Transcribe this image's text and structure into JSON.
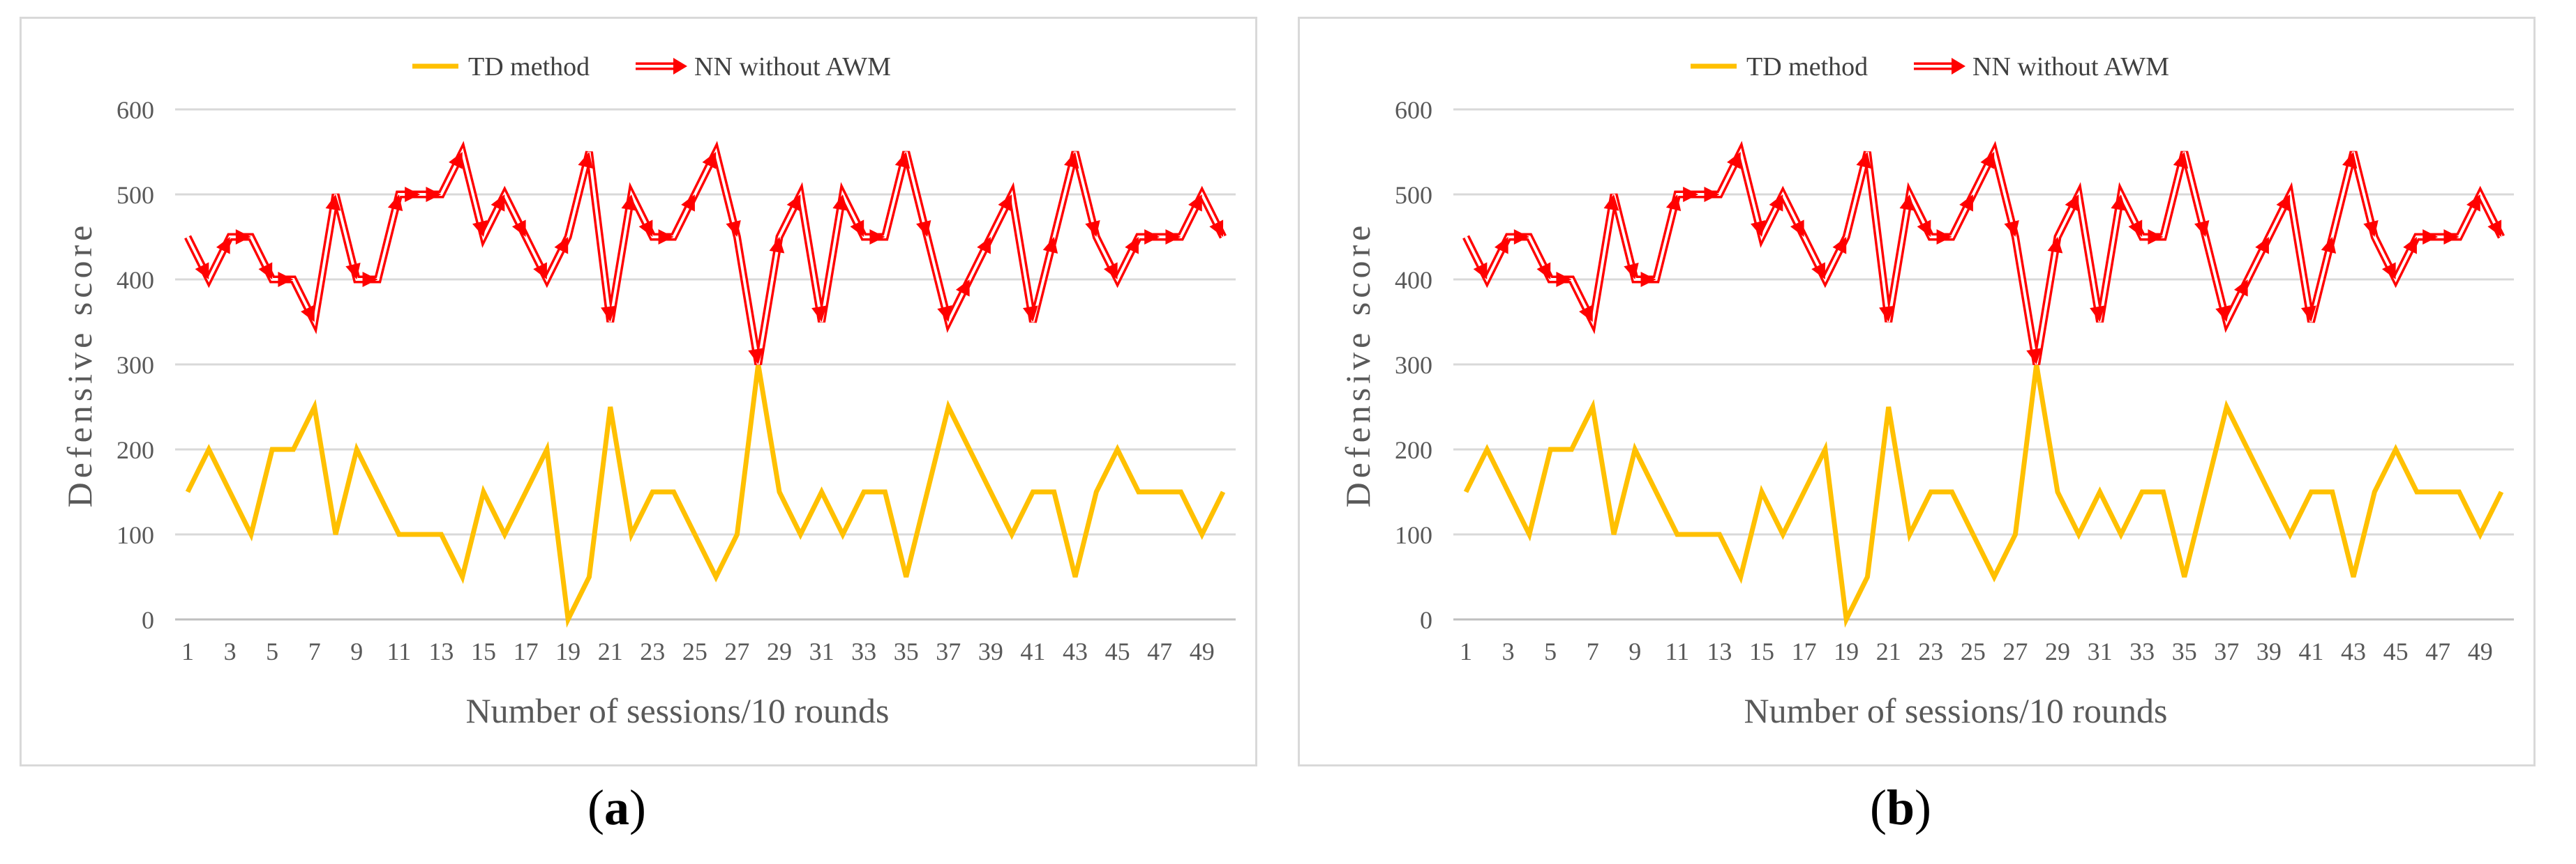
{
  "chart_data": [
    {
      "type": "line",
      "panel_label": "a",
      "title": "",
      "xlabel": "Number of sessions/10 rounds",
      "ylabel": "Defensive score",
      "ylim": [
        0,
        600
      ],
      "yticks": [
        0,
        100,
        200,
        300,
        400,
        500,
        600
      ],
      "grid": true,
      "legend_position": "top-center",
      "x": [
        1,
        2,
        3,
        4,
        5,
        6,
        7,
        8,
        9,
        10,
        11,
        12,
        13,
        14,
        15,
        16,
        17,
        18,
        19,
        20,
        21,
        22,
        23,
        24,
        25,
        26,
        27,
        28,
        29,
        30,
        31,
        32,
        33,
        34,
        35,
        36,
        37,
        38,
        39,
        40,
        41,
        42,
        43,
        44,
        45,
        46,
        47,
        48,
        49,
        50
      ],
      "xtick_labels": [
        "1",
        "3",
        "5",
        "7",
        "9",
        "11",
        "13",
        "15",
        "17",
        "19",
        "21",
        "23",
        "25",
        "27",
        "29",
        "31",
        "33",
        "35",
        "37",
        "39",
        "41",
        "43",
        "45",
        "47",
        "49"
      ],
      "series": [
        {
          "name": "TD method",
          "color": "#ffc000",
          "values": [
            150,
            200,
            150,
            100,
            200,
            200,
            250,
            100,
            200,
            150,
            100,
            100,
            100,
            50,
            150,
            100,
            150,
            200,
            0,
            50,
            250,
            100,
            150,
            150,
            100,
            50,
            100,
            300,
            150,
            100,
            150,
            100,
            150,
            150,
            50,
            150,
            250,
            200,
            150,
            100,
            150,
            150,
            50,
            150,
            200,
            150,
            150,
            150,
            100,
            150
          ]
        },
        {
          "name": "NN without AWM",
          "color": "#ff0000",
          "values": [
            450,
            400,
            450,
            450,
            400,
            400,
            350,
            500,
            400,
            400,
            500,
            500,
            500,
            550,
            450,
            500,
            450,
            400,
            450,
            550,
            350,
            500,
            450,
            450,
            500,
            550,
            450,
            300,
            450,
            500,
            350,
            500,
            450,
            450,
            550,
            450,
            350,
            400,
            450,
            500,
            350,
            450,
            550,
            450,
            400,
            450,
            450,
            450,
            500,
            450
          ]
        }
      ]
    },
    {
      "type": "line",
      "panel_label": "b",
      "title": "",
      "xlabel": "Number of sessions/10 rounds",
      "ylabel": "Defensive score",
      "ylim": [
        0,
        600
      ],
      "yticks": [
        0,
        100,
        200,
        300,
        400,
        500,
        600
      ],
      "grid": true,
      "legend_position": "top-center",
      "x": [
        1,
        2,
        3,
        4,
        5,
        6,
        7,
        8,
        9,
        10,
        11,
        12,
        13,
        14,
        15,
        16,
        17,
        18,
        19,
        20,
        21,
        22,
        23,
        24,
        25,
        26,
        27,
        28,
        29,
        30,
        31,
        32,
        33,
        34,
        35,
        36,
        37,
        38,
        39,
        40,
        41,
        42,
        43,
        44,
        45,
        46,
        47,
        48,
        49,
        50
      ],
      "xtick_labels": [
        "1",
        "3",
        "5",
        "7",
        "9",
        "11",
        "13",
        "15",
        "17",
        "19",
        "21",
        "23",
        "25",
        "27",
        "29",
        "31",
        "33",
        "35",
        "37",
        "39",
        "41",
        "43",
        "45",
        "47",
        "49"
      ],
      "series": [
        {
          "name": "TD method",
          "color": "#ffc000",
          "values": [
            150,
            200,
            150,
            100,
            200,
            200,
            250,
            100,
            200,
            150,
            100,
            100,
            100,
            50,
            150,
            100,
            150,
            200,
            0,
            50,
            250,
            100,
            150,
            150,
            100,
            50,
            100,
            300,
            150,
            100,
            150,
            100,
            150,
            150,
            50,
            150,
            250,
            200,
            150,
            100,
            150,
            150,
            50,
            150,
            200,
            150,
            150,
            150,
            100,
            150
          ]
        },
        {
          "name": "NN without AWM",
          "color": "#ff0000",
          "values": [
            450,
            400,
            450,
            450,
            400,
            400,
            350,
            500,
            400,
            400,
            500,
            500,
            500,
            550,
            450,
            500,
            450,
            400,
            450,
            550,
            350,
            500,
            450,
            450,
            500,
            550,
            450,
            300,
            450,
            500,
            350,
            500,
            450,
            450,
            550,
            450,
            350,
            400,
            450,
            500,
            350,
            450,
            550,
            450,
            400,
            450,
            450,
            450,
            500,
            450
          ]
        }
      ]
    }
  ],
  "captions": [
    "a",
    "b"
  ]
}
